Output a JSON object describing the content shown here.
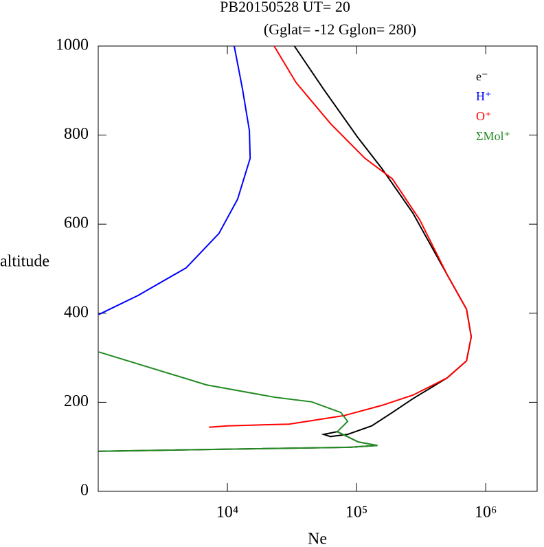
{
  "chart_data": {
    "type": "line",
    "title": "PB20150528   UT=  20",
    "subtitle": "(Gglat= -12   Gglon=  280)",
    "x_label": "Ne",
    "y_label": "altitude",
    "log_x": true,
    "xlim": [
      1000,
      2500000
    ],
    "xticks": [
      {
        "value": 10000,
        "label": "10⁴"
      },
      {
        "value": 100000,
        "label": "10⁵"
      },
      {
        "value": 1000000,
        "label": "10⁶"
      }
    ],
    "ylim": [
      0,
      1000
    ],
    "yticks": [
      0,
      200,
      400,
      600,
      800,
      1000
    ],
    "legend": "top-right",
    "series": [
      {
        "name": "e⁻",
        "color": "#000000",
        "x": [
          33000,
          55600,
          102000,
          157000,
          273000,
          504000,
          710000,
          773000,
          710000,
          504000,
          273000,
          189000,
          131000,
          85300,
          62800,
          55600,
          71000,
          103000,
          145000,
          90500,
          1010
        ],
        "y": [
          1000,
          903,
          795,
          725,
          625,
          486,
          409,
          347,
          293,
          255,
          208,
          177,
          147,
          128,
          123,
          128,
          134,
          111,
          103,
          99,
          90
        ]
      },
      {
        "name": "H⁺",
        "color": "#0000ff",
        "x": [
          11300,
          13100,
          14800,
          15000,
          12000,
          8600,
          4800,
          2040,
          1010
        ],
        "y": [
          1000,
          903,
          810,
          748,
          656,
          579,
          502,
          440,
          397
        ]
      },
      {
        "name": "O⁺",
        "color": "#ff0000",
        "x": [
          23000,
          34000,
          62800,
          116000,
          189000,
          308000,
          504000,
          710000,
          773000,
          710000,
          504000,
          273000,
          157000,
          80000,
          30000,
          10000,
          7200
        ],
        "y": [
          1000,
          918,
          826,
          748,
          702,
          610,
          486,
          409,
          347,
          293,
          255,
          216,
          193,
          170,
          151,
          147,
          144
        ]
      },
      {
        "name": "ΣMol⁺",
        "color": "#228b22",
        "x": [
          1010,
          6900,
          23600,
          45000,
          75600,
          85300,
          71000,
          103000,
          145000,
          90500,
          1010
        ],
        "y": [
          313,
          239,
          211,
          201,
          177,
          157,
          134,
          111,
          103,
          99,
          90
        ]
      }
    ]
  }
}
